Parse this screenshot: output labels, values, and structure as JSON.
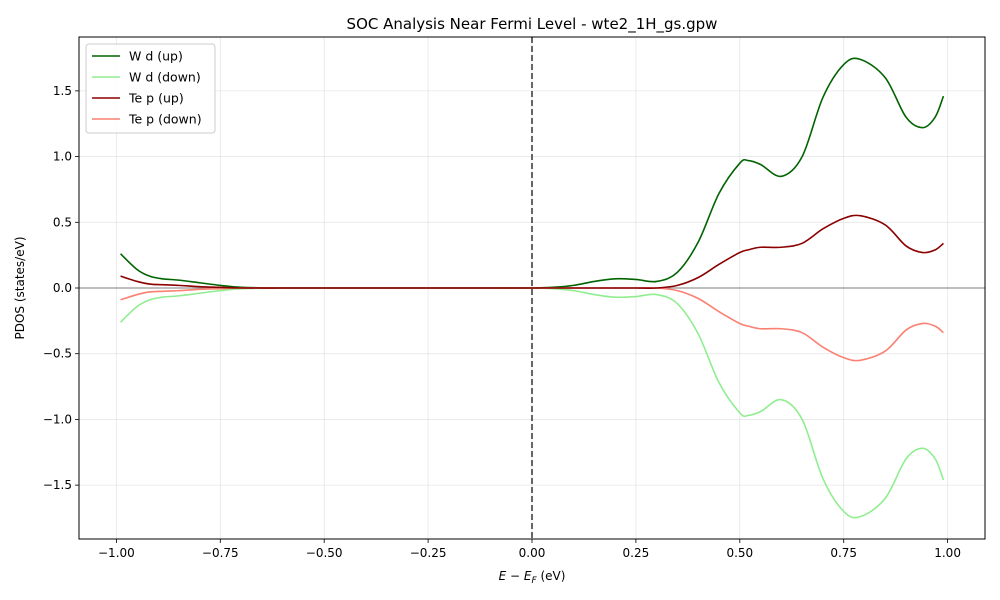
{
  "chart_data": {
    "type": "line",
    "title": "SOC Analysis Near Fermi Level - wte2_1H_gs.gpw",
    "xlabel": "E − E",
    "xlabel_sub": "F",
    "xlabel_unit": " (eV)",
    "ylabel": "PDOS (states/eV)",
    "xlim": [
      -1.09,
      1.09
    ],
    "ylim": [
      -1.91,
      1.91
    ],
    "xticks": [
      -1.0,
      -0.75,
      -0.5,
      -0.25,
      0.0,
      0.25,
      0.5,
      0.75,
      1.0
    ],
    "xtick_labels": [
      "−1.00",
      "−0.75",
      "−0.50",
      "−0.25",
      "0.00",
      "0.25",
      "0.50",
      "0.75",
      "1.00"
    ],
    "yticks": [
      -1.5,
      -1.0,
      -0.5,
      0.0,
      0.5,
      1.0,
      1.5
    ],
    "ytick_labels": [
      "−1.5",
      "−1.0",
      "−0.5",
      "0.0",
      "0.5",
      "1.0",
      "1.5"
    ],
    "grid": true,
    "legend_position": "top-left",
    "reference_lines": {
      "vertical_x": 0.0,
      "horizontal_y": 0.0
    },
    "x": [
      -0.99,
      -0.95,
      -0.92,
      -0.89,
      -0.85,
      -0.8,
      -0.75,
      -0.7,
      -0.6,
      -0.5,
      -0.4,
      -0.3,
      -0.2,
      -0.1,
      0.0,
      0.05,
      0.1,
      0.15,
      0.2,
      0.25,
      0.3,
      0.35,
      0.4,
      0.45,
      0.5,
      0.52,
      0.55,
      0.6,
      0.65,
      0.7,
      0.75,
      0.79,
      0.85,
      0.9,
      0.94,
      0.97,
      0.99
    ],
    "series": [
      {
        "name": "W d (up)",
        "color": "#006400",
        "values": [
          0.26,
          0.14,
          0.09,
          0.07,
          0.06,
          0.04,
          0.02,
          0.005,
          0.0,
          0.0,
          0.0,
          0.0,
          0.0,
          0.0,
          0.0,
          0.005,
          0.02,
          0.05,
          0.07,
          0.065,
          0.05,
          0.12,
          0.35,
          0.72,
          0.95,
          0.97,
          0.94,
          0.85,
          1.0,
          1.45,
          1.7,
          1.74,
          1.6,
          1.3,
          1.22,
          1.3,
          1.46
        ]
      },
      {
        "name": "W d (down)",
        "color": "#90ee90",
        "values": [
          -0.26,
          -0.14,
          -0.09,
          -0.07,
          -0.06,
          -0.04,
          -0.02,
          -0.005,
          0.0,
          0.0,
          0.0,
          0.0,
          0.0,
          0.0,
          0.0,
          -0.005,
          -0.02,
          -0.05,
          -0.07,
          -0.065,
          -0.05,
          -0.12,
          -0.35,
          -0.72,
          -0.95,
          -0.97,
          -0.94,
          -0.85,
          -1.0,
          -1.45,
          -1.7,
          -1.74,
          -1.6,
          -1.3,
          -1.22,
          -1.3,
          -1.46
        ]
      },
      {
        "name": "Te p (up)",
        "color": "#8b0000",
        "values": [
          0.09,
          0.05,
          0.03,
          0.025,
          0.02,
          0.01,
          0.005,
          0.0,
          0.0,
          0.0,
          0.0,
          0.0,
          0.0,
          0.0,
          0.0,
          0.0,
          0.0,
          0.0,
          0.0,
          0.0,
          0.0,
          0.02,
          0.08,
          0.18,
          0.27,
          0.29,
          0.31,
          0.31,
          0.34,
          0.45,
          0.53,
          0.55,
          0.48,
          0.32,
          0.27,
          0.29,
          0.34
        ]
      },
      {
        "name": "Te p (down)",
        "color": "#fa8072",
        "values": [
          -0.09,
          -0.05,
          -0.03,
          -0.025,
          -0.02,
          -0.01,
          -0.005,
          0.0,
          0.0,
          0.0,
          0.0,
          0.0,
          0.0,
          0.0,
          0.0,
          0.0,
          0.0,
          0.0,
          0.0,
          0.0,
          0.0,
          -0.02,
          -0.08,
          -0.18,
          -0.27,
          -0.29,
          -0.31,
          -0.31,
          -0.34,
          -0.45,
          -0.53,
          -0.55,
          -0.48,
          -0.32,
          -0.27,
          -0.29,
          -0.34
        ]
      }
    ]
  }
}
